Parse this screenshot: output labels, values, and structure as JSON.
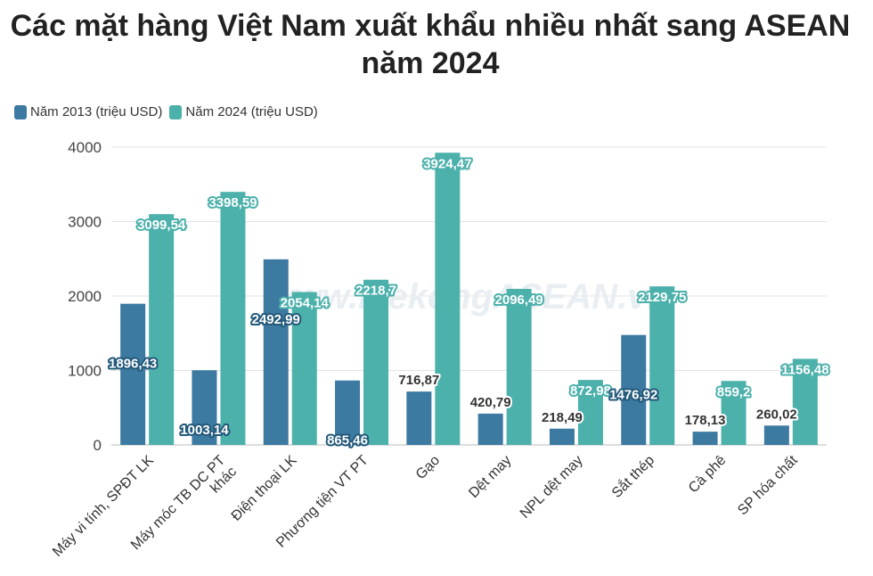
{
  "chart_data": {
    "type": "bar",
    "title": "Các mặt hàng Việt Nam xuất khẩu nhiều nhất sang ASEAN năm 2024",
    "categories": [
      [
        "Máy vi tính, SPĐT LK"
      ],
      [
        "Máy móc TB DC PT",
        "khác"
      ],
      [
        "Điện thoại LK"
      ],
      [
        "Phương tiện VT PT"
      ],
      [
        "Gạo"
      ],
      [
        "Dệt may"
      ],
      [
        "NPL dệt may"
      ],
      [
        "Sắt thép"
      ],
      [
        "Cà phê"
      ],
      [
        "SP hóa chất"
      ]
    ],
    "series": [
      {
        "name": "Năm 2013 (triệu USD)",
        "color": "#3d7aa1",
        "values": [
          1896.43,
          1003.14,
          2492.99,
          865.46,
          716.87,
          420.79,
          218.49,
          1476.92,
          178.13,
          260.02
        ],
        "labels": [
          "1896,43",
          "1003,14",
          "2492,99",
          "865,46",
          "716,87",
          "420,79",
          "218,49",
          "1476,92",
          "178,13",
          "260,02"
        ]
      },
      {
        "name": "Năm 2024 (triệu USD)",
        "color": "#4cb0ab",
        "values": [
          3099.54,
          3398.59,
          2054.14,
          2218.7,
          3924.47,
          2096.49,
          872.98,
          2129.75,
          859.2,
          1156.48
        ],
        "labels": [
          "3099,54",
          "3398,59",
          "2054,14",
          "2218,7",
          "3924,47",
          "2096,49",
          "872,98",
          "2129,75",
          "859,2",
          "1156,48"
        ]
      }
    ],
    "ylim": [
      0,
      4000
    ],
    "yticks": [
      0,
      1000,
      2000,
      3000,
      4000
    ],
    "grid": true,
    "legend": "top-left",
    "xlabel": "",
    "ylabel": ""
  },
  "watermark": "www.MekongASEAN.vn"
}
